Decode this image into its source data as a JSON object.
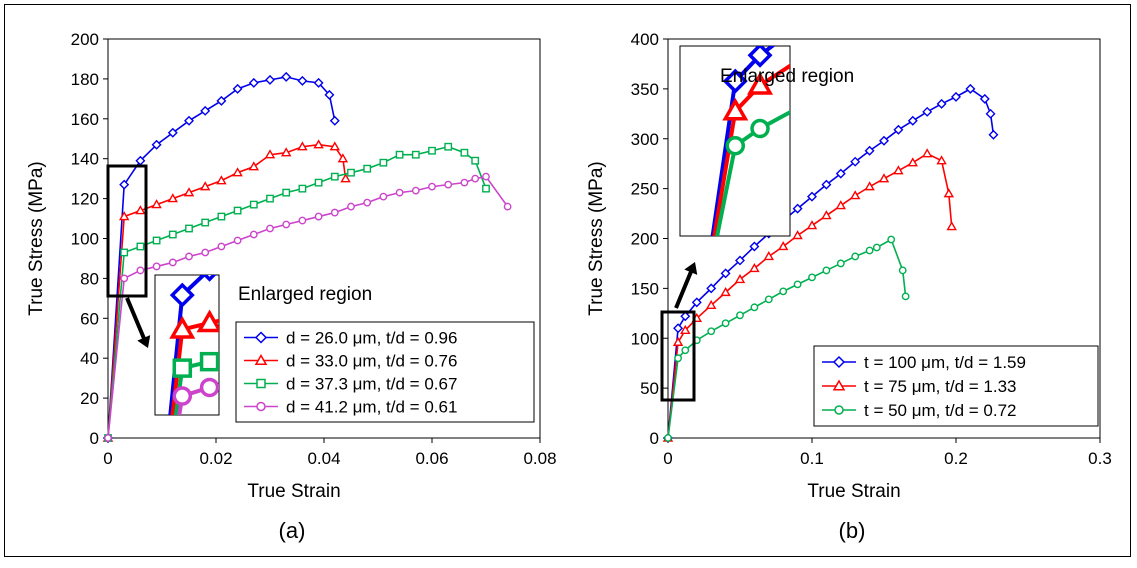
{
  "chart_data": [
    {
      "type": "line",
      "panel_label": "(a)",
      "xlabel": "True Strain",
      "ylabel": "True Stress (MPa)",
      "xlim": [
        0,
        0.08
      ],
      "ylim": [
        0,
        200
      ],
      "xticks": [
        0,
        0.02,
        0.04,
        0.06,
        0.08
      ],
      "xtick_labels": [
        "0",
        "0.02",
        "0.04",
        "0.06",
        "0.08"
      ],
      "yticks": [
        0,
        20,
        40,
        60,
        80,
        100,
        120,
        140,
        160,
        180,
        200
      ],
      "ytick_labels": [
        "0",
        "20",
        "40",
        "60",
        "80",
        "100",
        "120",
        "140",
        "160",
        "180",
        "200"
      ],
      "grid": false,
      "legend_position": "bottom-right",
      "annotation": "Enlarged region",
      "series": [
        {
          "name": "d = 26.0 μm,  t/d = 0.96",
          "color": "#0000ee",
          "marker": "diamond",
          "x": [
            0,
            0.003,
            0.006,
            0.009,
            0.012,
            0.015,
            0.018,
            0.021,
            0.024,
            0.027,
            0.03,
            0.033,
            0.036,
            0.039,
            0.041,
            0.042
          ],
          "y": [
            0,
            127,
            139,
            147,
            153,
            159,
            164,
            169,
            175,
            178,
            179.5,
            181,
            179,
            178,
            172,
            159
          ]
        },
        {
          "name": "d = 33.0 μm,  t/d = 0.76",
          "color": "#ff0000",
          "marker": "triangle",
          "x": [
            0,
            0.003,
            0.006,
            0.009,
            0.012,
            0.015,
            0.018,
            0.021,
            0.024,
            0.027,
            0.03,
            0.033,
            0.036,
            0.039,
            0.042,
            0.0435,
            0.044
          ],
          "y": [
            0,
            111,
            114,
            117,
            120,
            123,
            126,
            129,
            133,
            136,
            142,
            143,
            146,
            147,
            146,
            140,
            130
          ]
        },
        {
          "name": "d = 37.3 μm,  t/d = 0.67",
          "color": "#00b050",
          "marker": "square",
          "x": [
            0,
            0.003,
            0.006,
            0.009,
            0.012,
            0.015,
            0.018,
            0.021,
            0.024,
            0.027,
            0.03,
            0.033,
            0.036,
            0.039,
            0.042,
            0.045,
            0.048,
            0.051,
            0.054,
            0.057,
            0.06,
            0.063,
            0.066,
            0.068,
            0.07
          ],
          "y": [
            0,
            93,
            96,
            99,
            102,
            105,
            108,
            111,
            114,
            117,
            120,
            123,
            125,
            128,
            131,
            133,
            135,
            138,
            142,
            142,
            144,
            146,
            143,
            139,
            125
          ]
        },
        {
          "name": "d = 41.2 μm,  t/d = 0.61",
          "color": "#cc44cc",
          "marker": "circle",
          "x": [
            0,
            0.003,
            0.006,
            0.009,
            0.012,
            0.015,
            0.018,
            0.021,
            0.024,
            0.027,
            0.03,
            0.033,
            0.036,
            0.039,
            0.042,
            0.045,
            0.048,
            0.051,
            0.054,
            0.057,
            0.06,
            0.063,
            0.066,
            0.068,
            0.07,
            0.074
          ],
          "y": [
            0,
            80,
            84,
            86,
            88,
            91,
            93,
            96,
            99,
            102,
            105,
            107,
            109,
            111,
            113,
            116,
            118,
            121,
            123,
            124,
            126,
            127,
            128,
            130,
            131,
            116
          ]
        }
      ]
    },
    {
      "type": "line",
      "panel_label": "(b)",
      "xlabel": "True Strain",
      "ylabel": "True Stress (MPa)",
      "xlim": [
        0,
        0.3
      ],
      "ylim": [
        0,
        400
      ],
      "xticks": [
        0,
        0.1,
        0.2,
        0.3
      ],
      "xtick_labels": [
        "0",
        "0.1",
        "0.2",
        "0.3"
      ],
      "yticks": [
        0,
        50,
        100,
        150,
        200,
        250,
        300,
        350,
        400
      ],
      "ytick_labels": [
        "0",
        "50",
        "100",
        "150",
        "200",
        "250",
        "300",
        "350",
        "400"
      ],
      "grid": false,
      "legend_position": "bottom-right",
      "annotation": "Enlarged region",
      "series": [
        {
          "name": "t = 100 μm,  t/d = 1.59",
          "color": "#0000ee",
          "marker": "diamond",
          "x": [
            0,
            0.007,
            0.012,
            0.02,
            0.03,
            0.04,
            0.05,
            0.06,
            0.07,
            0.08,
            0.09,
            0.1,
            0.11,
            0.12,
            0.13,
            0.14,
            0.15,
            0.16,
            0.17,
            0.18,
            0.19,
            0.2,
            0.21,
            0.22,
            0.224,
            0.226
          ],
          "y": [
            0,
            110,
            122,
            136,
            150,
            165,
            178,
            192,
            205,
            218,
            230,
            242,
            254,
            265,
            277,
            288,
            298,
            309,
            318,
            327,
            335,
            342,
            350,
            340,
            325,
            304
          ]
        },
        {
          "name": "t = 75 μm,  t/d = 1.33",
          "color": "#ff0000",
          "marker": "triangle",
          "x": [
            0,
            0.007,
            0.012,
            0.02,
            0.03,
            0.04,
            0.05,
            0.06,
            0.07,
            0.08,
            0.09,
            0.1,
            0.11,
            0.12,
            0.13,
            0.14,
            0.15,
            0.16,
            0.17,
            0.18,
            0.19,
            0.195,
            0.197
          ],
          "y": [
            0,
            96,
            108,
            120,
            133,
            146,
            159,
            170,
            182,
            192,
            203,
            213,
            223,
            233,
            243,
            252,
            260,
            268,
            276,
            285,
            278,
            245,
            212
          ]
        },
        {
          "name": "t = 50 μm,  t/d = 0.72",
          "color": "#00b050",
          "marker": "circle",
          "x": [
            0,
            0.007,
            0.012,
            0.02,
            0.03,
            0.04,
            0.05,
            0.06,
            0.07,
            0.08,
            0.09,
            0.1,
            0.11,
            0.12,
            0.13,
            0.14,
            0.145,
            0.155,
            0.163,
            0.165
          ],
          "y": [
            0,
            80,
            88,
            98,
            107,
            115,
            123,
            131,
            139,
            147,
            154,
            161,
            168,
            175,
            182,
            188,
            191,
            199,
            168,
            142
          ]
        }
      ]
    }
  ]
}
